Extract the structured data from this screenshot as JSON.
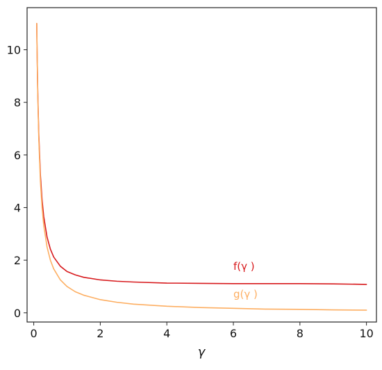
{
  "chart_data": {
    "type": "line",
    "title": "",
    "xlabel": "γ",
    "ylabel": "",
    "xlim": [
      -0.2,
      10.3
    ],
    "ylim": [
      -0.35,
      11.6
    ],
    "xticks": [
      "0",
      "2",
      "4",
      "6",
      "8",
      "10"
    ],
    "yticks": [
      "0",
      "2",
      "4",
      "6",
      "8",
      "10"
    ],
    "grid": false,
    "legend": "none",
    "series": [
      {
        "name": "f(γ )",
        "color": "#d7191c",
        "label_position": [
          6.0,
          1.63
        ],
        "x": [
          0.09,
          0.1,
          0.12,
          0.15,
          0.2,
          0.25,
          0.3,
          0.4,
          0.5,
          0.6,
          0.8,
          1.0,
          1.25,
          1.5,
          2.0,
          2.5,
          3.0,
          4.0,
          5.0,
          6.0,
          7.0,
          8.0,
          9.0,
          10.0
        ],
        "values": [
          11.0,
          10.0,
          8.43,
          6.83,
          5.24,
          4.29,
          3.66,
          2.88,
          2.42,
          2.12,
          1.77,
          1.57,
          1.44,
          1.35,
          1.25,
          1.2,
          1.17,
          1.13,
          1.12,
          1.11,
          1.11,
          1.11,
          1.1,
          1.08
        ]
      },
      {
        "name": "g(γ )",
        "color": "#fdae61",
        "label_position": [
          6.0,
          0.58
        ],
        "x": [
          0.09,
          0.1,
          0.12,
          0.15,
          0.2,
          0.25,
          0.3,
          0.4,
          0.5,
          0.6,
          0.8,
          1.0,
          1.25,
          1.5,
          2.0,
          2.5,
          3.0,
          4.0,
          5.0,
          6.0,
          7.0,
          8.0,
          9.0,
          10.0
        ],
        "values": [
          11.0,
          10.0,
          8.33,
          6.67,
          5.0,
          4.0,
          3.33,
          2.5,
          2.0,
          1.67,
          1.25,
          1.0,
          0.8,
          0.67,
          0.5,
          0.4,
          0.33,
          0.25,
          0.2,
          0.17,
          0.14,
          0.13,
          0.11,
          0.1
        ]
      }
    ]
  }
}
